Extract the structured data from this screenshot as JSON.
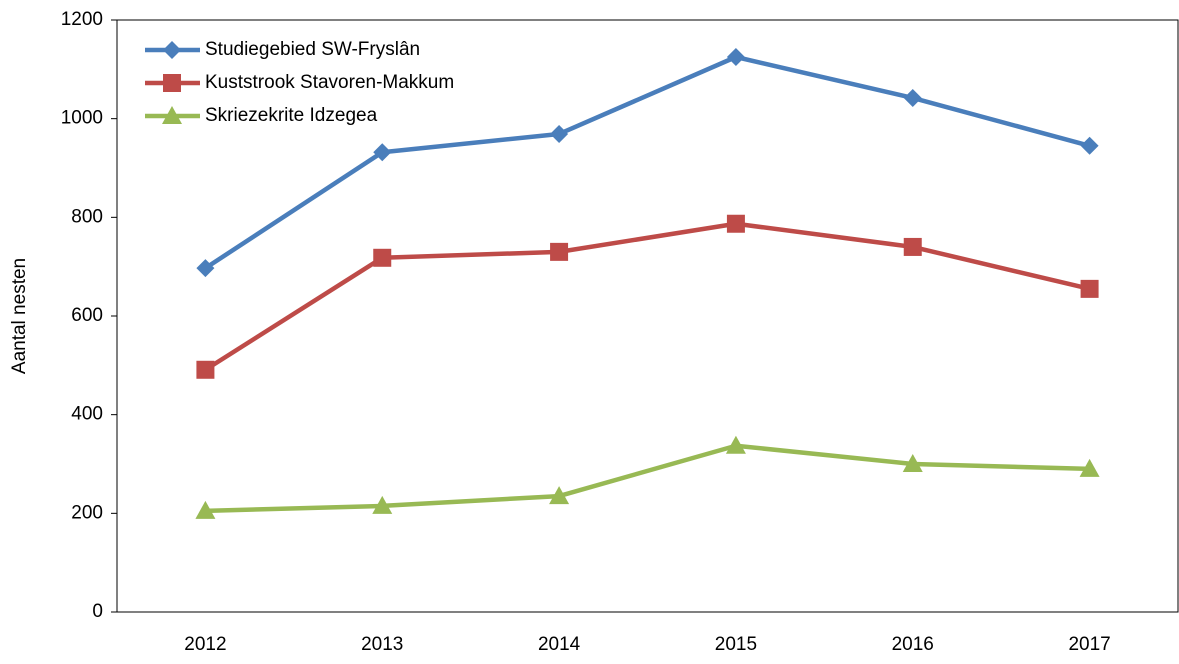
{
  "chart_data": {
    "type": "line",
    "y_label": "Aantal nesten",
    "categories": [
      "2012",
      "2013",
      "2014",
      "2015",
      "2016",
      "2017"
    ],
    "series": [
      {
        "name": "Studiegebied SW-Fryslân",
        "color": "#4a7ebb",
        "marker": "diamond",
        "values": [
          697,
          932,
          969,
          1125,
          1042,
          945
        ]
      },
      {
        "name": "Kuststrook Stavoren-Makkum",
        "color": "#be4b48",
        "marker": "square",
        "values": [
          491,
          718,
          730,
          787,
          740,
          655
        ]
      },
      {
        "name": "Skriezekrite Idzegea",
        "color": "#98b954",
        "marker": "triangle",
        "values": [
          205,
          215,
          235,
          337,
          300,
          290
        ]
      }
    ],
    "ylim": [
      0,
      1200
    ],
    "yticks": [
      0,
      200,
      400,
      600,
      800,
      1000,
      1200
    ],
    "grid": false,
    "legend": "upper left"
  }
}
